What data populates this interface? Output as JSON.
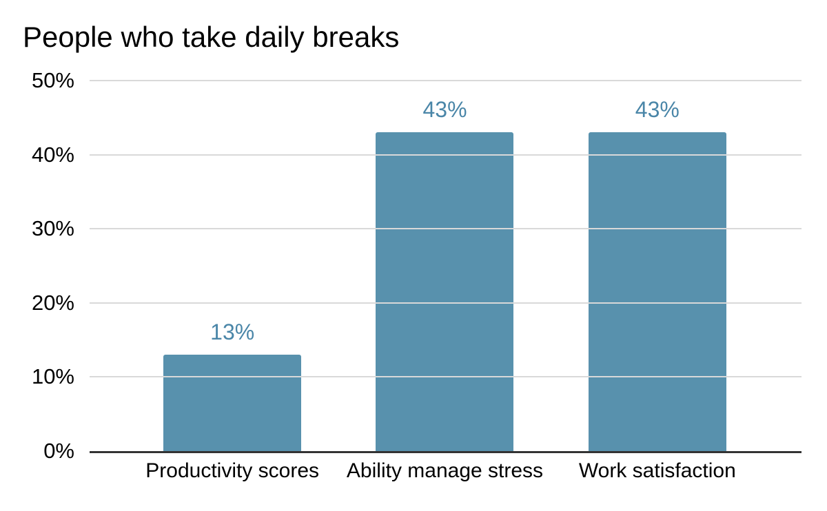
{
  "chart_data": {
    "type": "bar",
    "title": "People who take daily breaks",
    "categories": [
      "Productivity scores",
      "Ability manage stress",
      "Work satisfaction"
    ],
    "values": [
      13,
      43,
      43
    ],
    "value_labels": [
      "13%",
      "43%",
      "43%"
    ],
    "y_ticks": [
      "0%",
      "10%",
      "20%",
      "30%",
      "40%",
      "50%"
    ],
    "ylim": [
      0,
      50
    ],
    "xlabel": "",
    "ylabel": "",
    "legend": "none",
    "grid": "horizontal",
    "colors": {
      "bar": "#5891ad",
      "value_label": "#4a86a8",
      "gridline": "#d9d9d9",
      "axis_line": "#333333",
      "title_text": "#000000",
      "tick_text": "#000000",
      "background": "#ffffff"
    }
  }
}
